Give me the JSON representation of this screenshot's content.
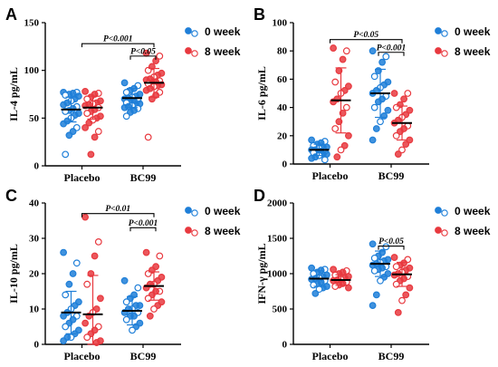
{
  "colors": {
    "week0": "#1f7fd8",
    "week8": "#e8393f"
  },
  "chart_data": [
    {
      "panel": "A",
      "type": "scatter",
      "ylabel": "IL-4  pg/mL",
      "ylim": [
        0,
        150
      ],
      "yticks": [
        0,
        50,
        100,
        150
      ],
      "categories": [
        "Placebo",
        "BC99"
      ],
      "legend": [
        "0 week",
        "8 week"
      ],
      "series": [
        {
          "name": "0 week",
          "groups": [
            {
              "mean": 59,
              "sd": 13,
              "points": [
                77,
                77,
                76,
                75,
                74,
                73,
                70,
                68,
                66,
                64,
                62,
                60,
                58,
                57,
                55,
                53,
                50,
                47,
                44,
                40,
                36,
                32,
                12
              ]
            },
            {
              "mean": 71,
              "sd": 10,
              "points": [
                87,
                84,
                81,
                79,
                77,
                75,
                73,
                72,
                71,
                70,
                69,
                68,
                67,
                66,
                65,
                64,
                63,
                62,
                61,
                60,
                58,
                56,
                52
              ]
            }
          ]
        },
        {
          "name": "8 week",
          "groups": [
            {
              "mean": 61,
              "sd": 12,
              "points": [
                78,
                76,
                75,
                72,
                70,
                68,
                66,
                65,
                64,
                63,
                61,
                59,
                57,
                55,
                52,
                50,
                48,
                45,
                40,
                36,
                30,
                12
              ]
            },
            {
              "mean": 87,
              "sd": 15,
              "points": [
                118,
                115,
                110,
                104,
                100,
                97,
                95,
                93,
                91,
                90,
                89,
                88,
                87,
                86,
                85,
                84,
                83,
                81,
                79,
                77,
                74,
                70,
                30
              ]
            }
          ]
        }
      ],
      "sig": [
        {
          "text": "P<0.001",
          "from": 0,
          "to": 1,
          "y": 128
        },
        {
          "text": "P<0.05",
          "from": 0.78,
          "to": 1.22,
          "y": 115
        }
      ]
    },
    {
      "panel": "B",
      "type": "scatter",
      "ylabel": "IL-6 pg/mL",
      "ylim": [
        0,
        100
      ],
      "yticks": [
        0,
        20,
        40,
        60,
        80,
        100
      ],
      "categories": [
        "Placebo",
        "BC99"
      ],
      "legend": [
        "0 week",
        "8 week"
      ],
      "series": [
        {
          "name": "0 week",
          "groups": [
            {
              "mean": 10,
              "sd": 4,
              "points": [
                17,
                16,
                15,
                14,
                13,
                12,
                12,
                11,
                10,
                10,
                9,
                9,
                8,
                8,
                7,
                7,
                6,
                5,
                4,
                3
              ]
            },
            {
              "mean": 50,
              "sd": 17,
              "points": [
                80,
                76,
                72,
                66,
                62,
                58,
                56,
                54,
                52,
                50,
                48,
                46,
                44,
                40,
                38,
                34,
                30,
                25,
                17
              ]
            }
          ]
        },
        {
          "name": "8 week",
          "groups": [
            {
              "mean": 45,
              "sd": 23,
              "points": [
                82,
                80,
                74,
                66,
                58,
                55,
                52,
                50,
                46,
                44,
                40,
                36,
                30,
                25,
                20,
                13,
                10,
                5
              ]
            },
            {
              "mean": 29,
              "sd": 12,
              "points": [
                50,
                50,
                46,
                42,
                40,
                38,
                35,
                33,
                31,
                29,
                27,
                25,
                23,
                20,
                17,
                14,
                10,
                7
              ]
            }
          ]
        }
      ],
      "sig": [
        {
          "text": "P<0.05",
          "from": 0,
          "to": 1,
          "y": 88
        },
        {
          "text": "P<0.001",
          "from": 0.78,
          "to": 1.22,
          "y": 79
        }
      ]
    },
    {
      "panel": "C",
      "type": "scatter",
      "ylabel": "IL-10 pg/mL",
      "ylim": [
        0,
        40
      ],
      "yticks": [
        0,
        10,
        20,
        30,
        40
      ],
      "categories": [
        "Placebo",
        "BC99"
      ],
      "legend": [
        "0 week",
        "8 week"
      ],
      "series": [
        {
          "name": "0 week",
          "groups": [
            {
              "mean": 9,
              "sd": 6,
              "points": [
                26,
                23,
                20,
                17,
                14,
                12,
                11,
                10,
                9,
                8,
                8,
                7,
                6,
                5,
                4,
                3,
                2,
                2,
                1
              ]
            },
            {
              "mean": 9.5,
              "sd": 4,
              "points": [
                18,
                16,
                14,
                13,
                12,
                11,
                11,
                10,
                10,
                9,
                9,
                8,
                8,
                7,
                6,
                5,
                4
              ]
            }
          ]
        },
        {
          "name": "8 week",
          "groups": [
            {
              "mean": 8.5,
              "sd": 11,
              "points": [
                36,
                29,
                25,
                20,
                17,
                13,
                10,
                9,
                8,
                6,
                5,
                4,
                3,
                2,
                1,
                0.5
              ]
            },
            {
              "mean": 16.5,
              "sd": 4,
              "points": [
                26,
                25,
                22,
                21,
                20,
                19,
                18,
                17,
                17,
                16,
                15,
                15,
                14,
                13,
                12,
                11,
                10,
                8
              ]
            }
          ]
        }
      ],
      "sig": [
        {
          "text": "P<0.01",
          "from": 0,
          "to": 1,
          "y": 37
        },
        {
          "text": "P<0.001",
          "from": 0.78,
          "to": 1.22,
          "y": 33
        }
      ]
    },
    {
      "panel": "D",
      "type": "scatter",
      "ylabel": "IFN-γ  pg/mL",
      "ylim": [
        0,
        2000
      ],
      "yticks": [
        0,
        500,
        1000,
        1500,
        2000
      ],
      "categories": [
        "Placebo",
        "BC99"
      ],
      "legend": [
        "0 week",
        "8 week"
      ],
      "series": [
        {
          "name": "0 week",
          "groups": [
            {
              "mean": 930,
              "sd": 110,
              "points": [
                1080,
                1060,
                1050,
                1020,
                1000,
                980,
                960,
                940,
                930,
                920,
                900,
                880,
                860,
                840,
                820,
                800,
                780,
                720
              ]
            },
            {
              "mean": 1140,
              "sd": 180,
              "points": [
                1420,
                1380,
                1300,
                1250,
                1220,
                1200,
                1180,
                1160,
                1140,
                1120,
                1100,
                1080,
                1060,
                1040,
                1000,
                950,
                900,
                700,
                550
              ]
            }
          ]
        },
        {
          "name": "8 week",
          "groups": [
            {
              "mean": 910,
              "sd": 75,
              "points": [
                1060,
                1040,
                1020,
                1000,
                980,
                960,
                940,
                920,
                910,
                900,
                880,
                860,
                840,
                820,
                800
              ]
            },
            {
              "mean": 990,
              "sd": 170,
              "points": [
                1230,
                1200,
                1150,
                1120,
                1100,
                1080,
                1050,
                1020,
                1000,
                980,
                960,
                930,
                900,
                850,
                800,
                700,
                620,
                450
              ]
            }
          ]
        }
      ],
      "sig": [
        {
          "text": "P<0.05",
          "from": 0.78,
          "to": 1.22,
          "y": 1390
        }
      ]
    }
  ]
}
